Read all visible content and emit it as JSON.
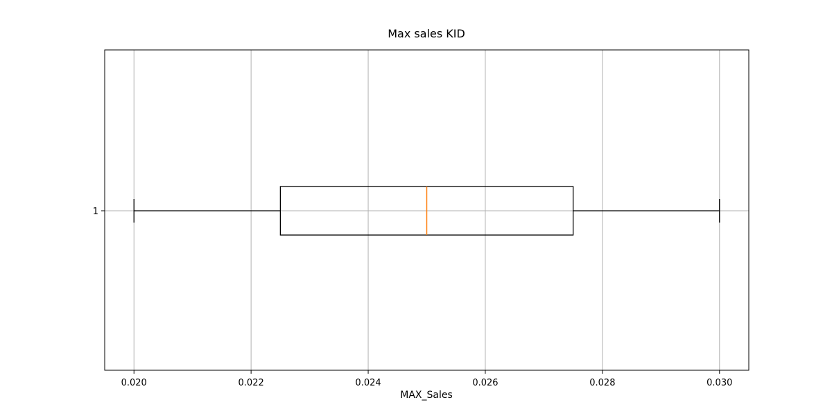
{
  "chart_data": {
    "type": "boxplot",
    "title": "Max sales KID",
    "xlabel": "MAX_Sales",
    "ylabel": "",
    "orientation": "horizontal",
    "xlim": [
      0.0195,
      0.0305
    ],
    "x_ticks": [
      0.02,
      0.022,
      0.024,
      0.026,
      0.028,
      0.03
    ],
    "x_tick_labels": [
      "0.020",
      "0.022",
      "0.024",
      "0.026",
      "0.028",
      "0.030"
    ],
    "y_tick_labels": [
      "1"
    ],
    "grid": true,
    "series": [
      {
        "category": "1",
        "whisker_low": 0.02,
        "q1": 0.0225,
        "median": 0.025,
        "q3": 0.0275,
        "whisker_high": 0.03
      }
    ],
    "colors": {
      "box": "#000000",
      "whisker": "#000000",
      "median": "#ff7f0e",
      "grid": "#b0b0b0",
      "axes": "#000000"
    }
  }
}
